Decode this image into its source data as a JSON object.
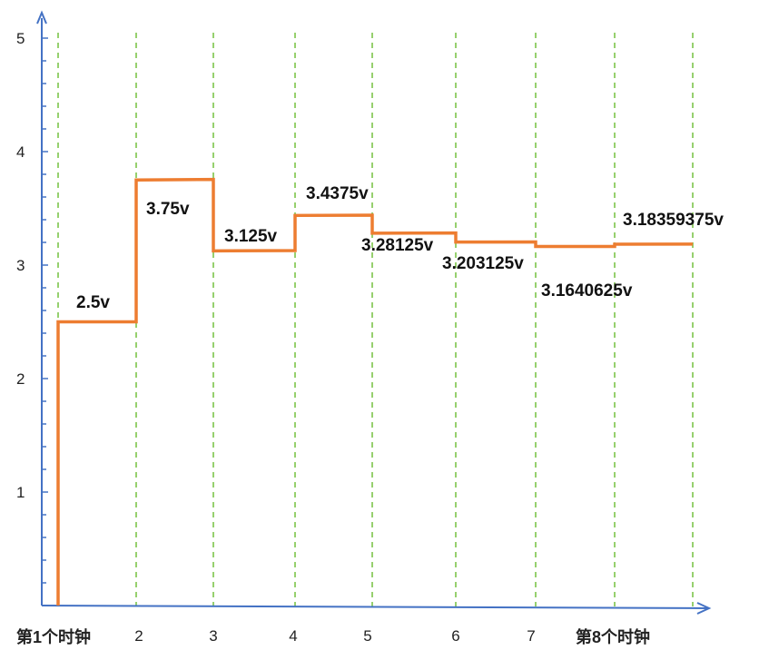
{
  "chart_data": {
    "type": "line",
    "step": true,
    "ylim": [
      0,
      5
    ],
    "y_ticks": [
      "1",
      "2",
      "3",
      "4",
      "5"
    ],
    "x_tick_labels": [
      "第1个时钟",
      "2",
      "3",
      "4",
      "5",
      "6",
      "7",
      "第8个时钟"
    ],
    "grid": {
      "vertical": true,
      "style": "dashed",
      "color": "#7cc44a"
    },
    "series": [
      {
        "color": "#ed7d31",
        "values": [
          2.5,
          3.75,
          3.125,
          3.4375,
          3.28125,
          3.203125,
          3.1640625,
          3.18359375
        ]
      }
    ],
    "data_labels": [
      "2.5v",
      "3.75v",
      "3.125v",
      "3.4375v",
      "3.28125v",
      "3.203125v",
      "3.1640625v",
      "3.18359375v"
    ],
    "colors": {
      "axis": "#4472c4",
      "grid": "#7cc44a",
      "line": "#ed7d31"
    }
  }
}
